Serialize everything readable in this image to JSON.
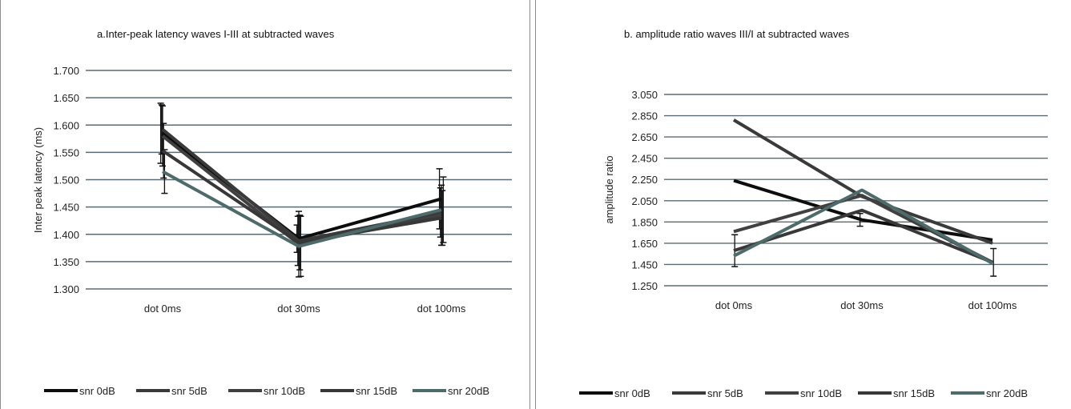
{
  "chart_data": [
    {
      "type": "line",
      "title": "a.Inter-peak latency waves I-III at subtracted  waves",
      "xlabel": "",
      "ylabel": "Inter peak latency (ms)",
      "categories": [
        "dot 0ms",
        "dot 30ms",
        "dot 100ms"
      ],
      "ylim": [
        1.3,
        1.7
      ],
      "yticks": [
        "1.300",
        "1.350",
        "1.400",
        "1.450",
        "1.500",
        "1.550",
        "1.600",
        "1.650",
        "1.700"
      ],
      "grid": true,
      "legend_position": "bottom",
      "series": [
        {
          "name": "snr 0dB",
          "color": "#0d0d0d",
          "values": [
            1.585,
            1.392,
            1.465
          ],
          "error": [
            0.055,
            0.025,
            0.055
          ]
        },
        {
          "name": "snr 5dB",
          "color": "#3a3a3a",
          "values": [
            1.592,
            1.388,
            1.44
          ],
          "error": [
            0.045,
            0.045,
            0.045
          ]
        },
        {
          "name": "snr 10dB",
          "color": "#404040",
          "values": [
            1.58,
            1.382,
            1.435
          ],
          "error": [
            0.055,
            0.06,
            0.055
          ]
        },
        {
          "name": "snr 15dB",
          "color": "#383838",
          "values": [
            1.553,
            1.385,
            1.43
          ],
          "error": [
            0.05,
            0.05,
            0.05
          ]
        },
        {
          "name": "snr 20dB",
          "color": "#4e6b6b",
          "values": [
            1.515,
            1.378,
            1.445
          ],
          "error": [
            0.04,
            0.055,
            0.06
          ]
        }
      ]
    },
    {
      "type": "line",
      "title": "b. amplitude ratio waves III/I at subtracted waves",
      "xlabel": "",
      "ylabel": "amplitude ratio",
      "categories": [
        "dot 0ms",
        "dot 30ms",
        "dot 100ms"
      ],
      "ylim": [
        1.25,
        3.05
      ],
      "yticks": [
        "1.250",
        "1.450",
        "1.650",
        "1.850",
        "2.050",
        "2.250",
        "2.450",
        "2.650",
        "2.850",
        "3.050"
      ],
      "grid": true,
      "legend_position": "bottom",
      "series": [
        {
          "name": "snr 0dB",
          "color": "#0d0d0d",
          "values": [
            2.24,
            1.87,
            1.68
          ],
          "error": [
            0.0,
            0.06,
            0.0
          ]
        },
        {
          "name": "snr 5dB",
          "color": "#3a3a3a",
          "values": [
            2.81,
            2.09,
            1.65
          ],
          "error": [
            0.0,
            0.0,
            0.0
          ]
        },
        {
          "name": "snr 10dB",
          "color": "#404040",
          "values": [
            1.76,
            2.1,
            1.47
          ],
          "error": [
            0.0,
            0.0,
            0.0
          ]
        },
        {
          "name": "snr 15dB",
          "color": "#383838",
          "values": [
            1.58,
            1.96,
            1.47
          ],
          "error": [
            0.15,
            0.0,
            0.13
          ]
        },
        {
          "name": "snr 20dB",
          "color": "#4e6b6b",
          "values": [
            1.53,
            2.15,
            1.46
          ],
          "error": [
            0.0,
            0.0,
            0.0
          ]
        }
      ]
    }
  ]
}
